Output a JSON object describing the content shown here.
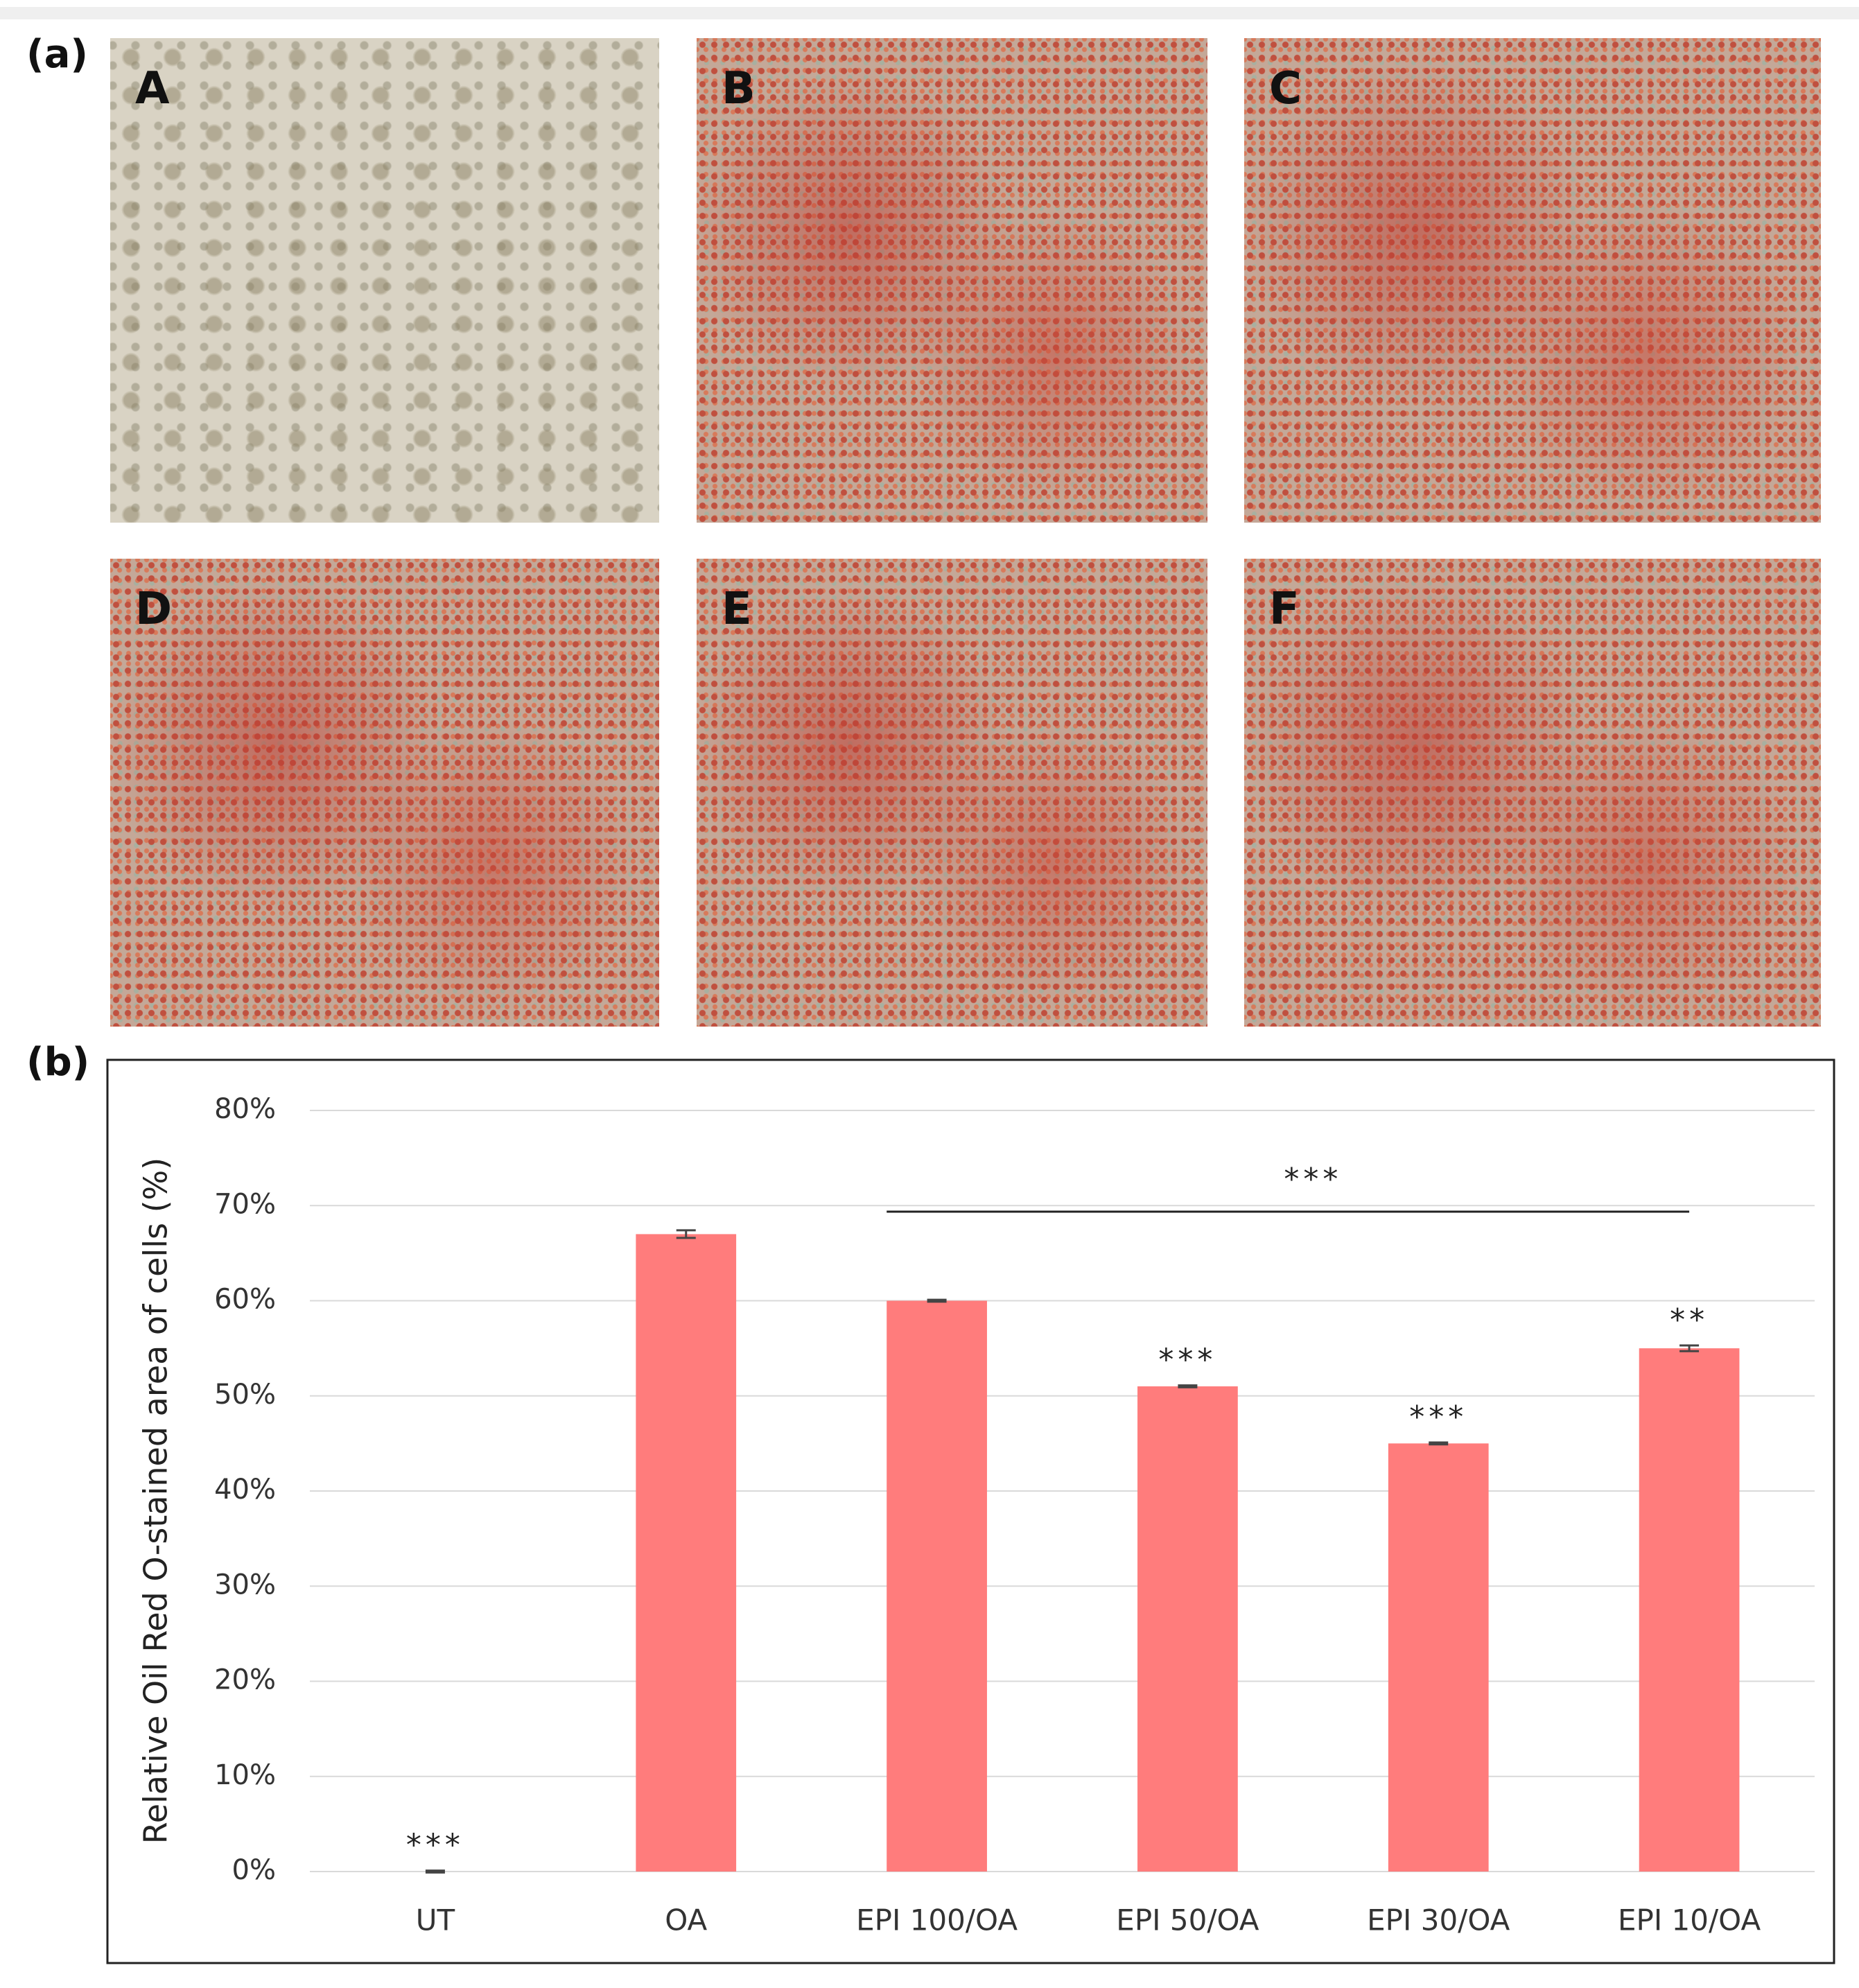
{
  "panel_a": {
    "label": "(a)",
    "images": [
      "A",
      "B",
      "C",
      "D",
      "E",
      "F"
    ]
  },
  "panel_b": {
    "label": "(b)"
  },
  "chart_data": {
    "type": "bar",
    "y_label": "Relative Oil Red O-stained area of cells (%)",
    "categories": [
      "UT",
      "OA",
      "EPI 100/OA",
      "EPI 50/OA",
      "EPI 30/OA",
      "EPI 10/OA"
    ],
    "values": [
      0,
      67,
      60,
      51,
      45,
      55
    ],
    "errors": [
      0.1,
      0.4,
      0.1,
      0.1,
      0.1,
      0.3
    ],
    "significance": [
      "***",
      null,
      null,
      "***",
      "***",
      "**"
    ],
    "bracket": {
      "label": "***",
      "from": 2,
      "to": 5
    },
    "color": "#ff7c7c",
    "ylim": [
      0,
      80
    ],
    "yticks": [
      {
        "value": 0,
        "label": "0%"
      },
      {
        "value": 10,
        "label": "10%"
      },
      {
        "value": 20,
        "label": "20%"
      },
      {
        "value": 30,
        "label": "30%"
      },
      {
        "value": 40,
        "label": "40%"
      },
      {
        "value": 50,
        "label": "50%"
      },
      {
        "value": 60,
        "label": "60%"
      },
      {
        "value": 70,
        "label": "70%"
      },
      {
        "value": 80,
        "label": "80%"
      }
    ],
    "grid": true
  }
}
